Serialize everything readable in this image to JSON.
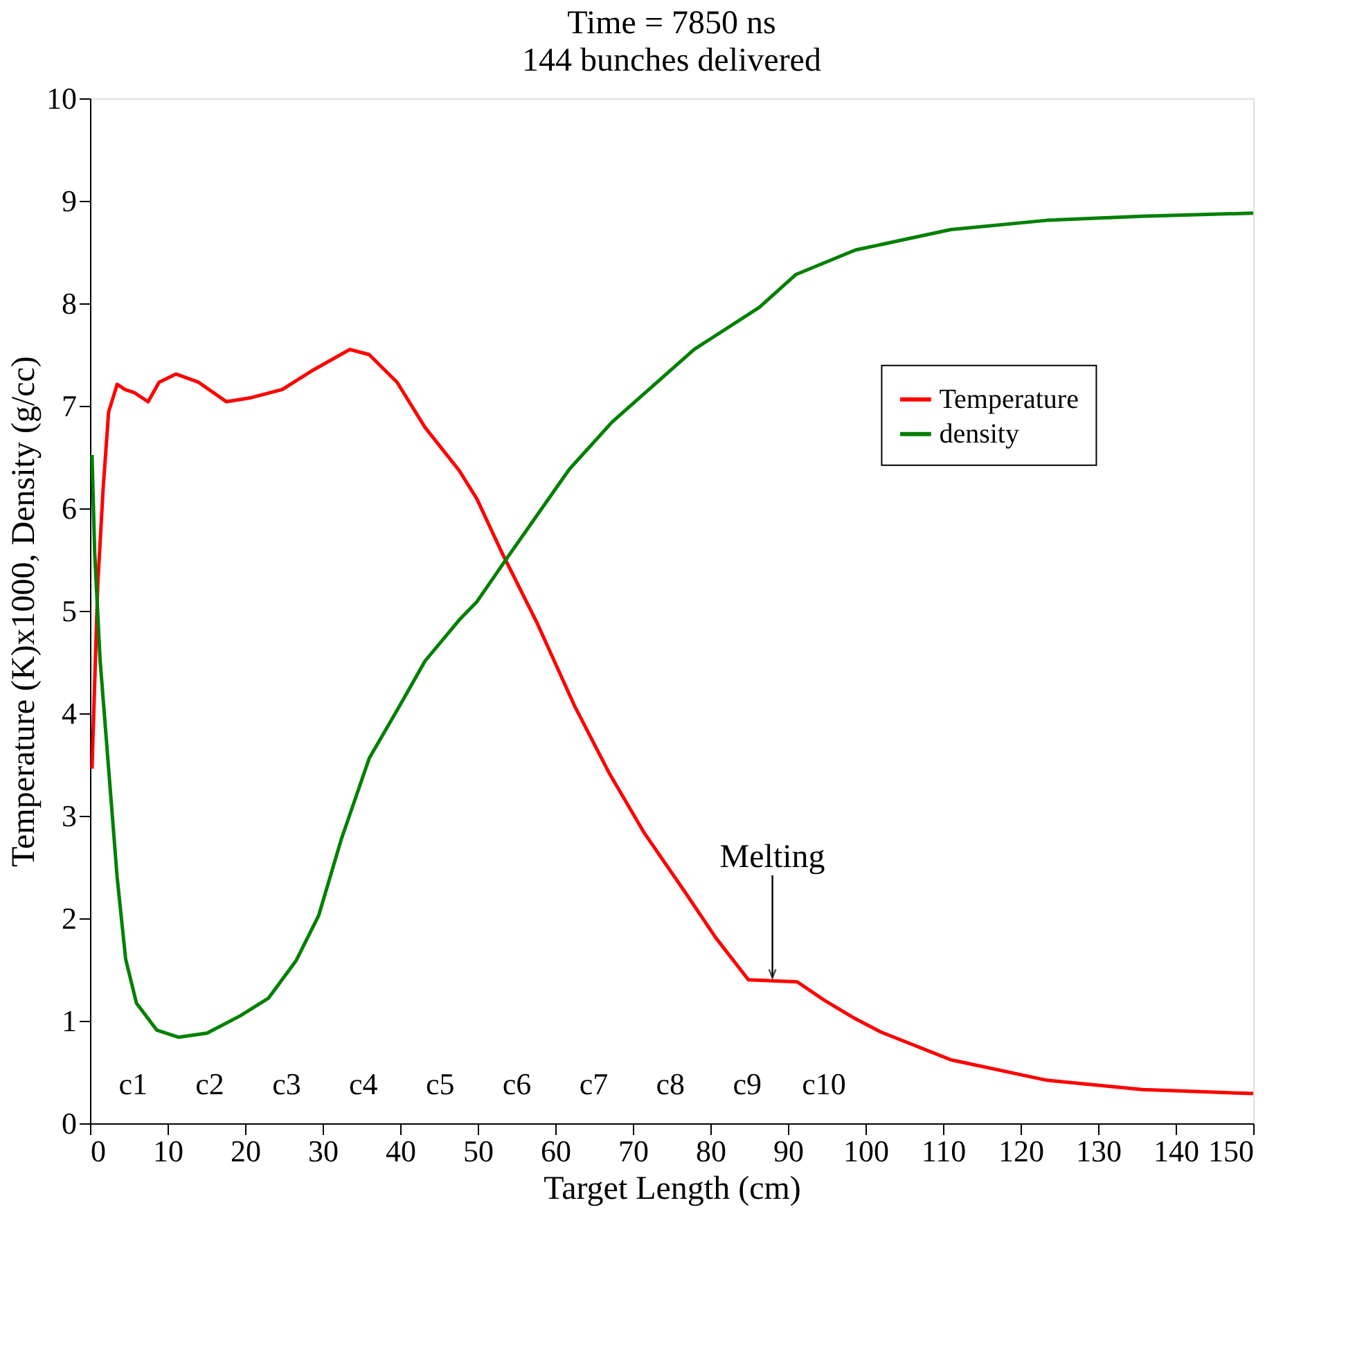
{
  "chart_data": {
    "type": "line",
    "title": "Time = 7850 ns",
    "subtitle": "144 bunches delivered",
    "xlabel": "Target Length (cm)",
    "ylabel": "Temperature (K)x1000, Density (g/cc)",
    "xlim": [
      0,
      150
    ],
    "xticks": [
      0,
      10,
      20,
      30,
      40,
      50,
      60,
      70,
      80,
      90,
      100,
      110,
      120,
      130,
      140,
      150
    ],
    "ylim": [
      0,
      10
    ],
    "yticks": [
      0,
      1,
      2,
      3,
      4,
      5,
      6,
      7,
      8,
      9,
      10
    ],
    "grid": false,
    "legend": "top right",
    "marker": "none",
    "line_style": "solid",
    "series": [
      {
        "name": "Temperature",
        "color": "#ff0000",
        "x": [
          0.26,
          1.0,
          1.7,
          2.4,
          3.5,
          4.5,
          5.7,
          7.5,
          8.9,
          11.1,
          14,
          17.6,
          20.8,
          24.8,
          28.8,
          33.5,
          36,
          39.6,
          43.2,
          47.6,
          49.9,
          53.1,
          57.6,
          62.5,
          67,
          71.5,
          76.6,
          80.7,
          84.9,
          91.2,
          94.7,
          98.7,
          102,
          111,
          123.4,
          135.7,
          150
        ],
        "values": [
          3.46,
          5.26,
          6.2,
          6.94,
          7.21,
          7.16,
          7.13,
          7.04,
          7.23,
          7.31,
          7.23,
          7.04,
          7.08,
          7.16,
          7.35,
          7.55,
          7.5,
          7.23,
          6.79,
          6.37,
          6.09,
          5.57,
          4.89,
          4.07,
          3.41,
          2.83,
          2.27,
          1.81,
          1.4,
          1.38,
          1.2,
          1.02,
          0.89,
          0.62,
          0.42,
          0.33,
          0.29
        ]
      },
      {
        "name": "density",
        "color": "#008000",
        "x": [
          0.26,
          0.6,
          1.3,
          2.4,
          3.5,
          4.6,
          6.0,
          8.6,
          11.4,
          15.1,
          19.4,
          23,
          26.6,
          29.5,
          32.4,
          36,
          39.6,
          43.2,
          47.6,
          49.9,
          54.1,
          61.8,
          67.3,
          77.9,
          86.3,
          91,
          98.7,
          111,
          123.4,
          135.7,
          150
        ],
        "values": [
          6.52,
          5.57,
          4.52,
          3.46,
          2.4,
          1.6,
          1.17,
          0.91,
          0.84,
          0.88,
          1.05,
          1.22,
          1.59,
          2.03,
          2.77,
          3.56,
          4.03,
          4.51,
          4.91,
          5.09,
          5.55,
          6.38,
          6.84,
          7.55,
          7.96,
          8.28,
          8.52,
          8.72,
          8.81,
          8.85,
          8.88
        ]
      }
    ],
    "annotations": [
      "c1",
      "c2",
      "c3",
      "c4",
      "c5",
      "c6",
      "c7",
      "c8",
      "c9",
      "c10",
      {
        "text": "Melting",
        "x": 88,
        "y": 1.42
      }
    ]
  }
}
